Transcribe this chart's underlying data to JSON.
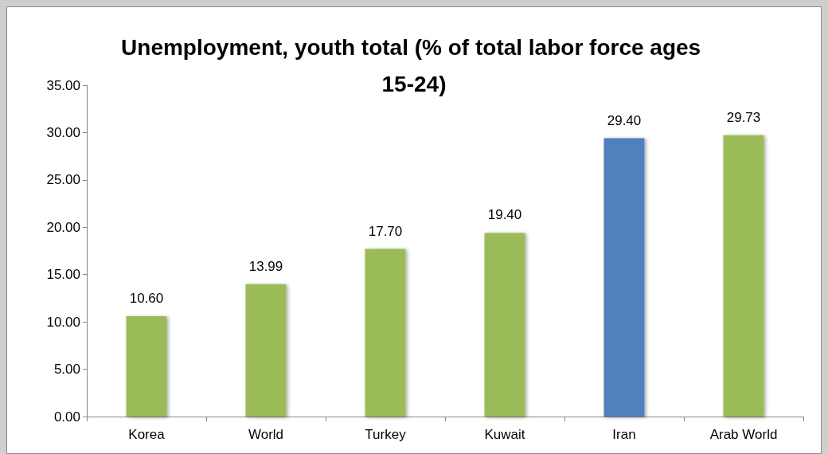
{
  "chart_data": {
    "type": "bar",
    "title": "Unemployment, youth total (% of total labor force ages 15-24)",
    "categories": [
      "Korea",
      "World",
      "Turkey",
      "Kuwait",
      "Iran",
      "Arab World"
    ],
    "values": [
      10.6,
      13.99,
      17.7,
      19.4,
      29.4,
      29.73
    ],
    "colors": [
      "#9bbb59",
      "#9bbb59",
      "#9bbb59",
      "#9bbb59",
      "#4f81bd",
      "#9bbb59"
    ],
    "value_labels": [
      "10.60",
      "13.99",
      "17.70",
      "19.40",
      "29.40",
      "29.73"
    ],
    "ylim": [
      0,
      35
    ],
    "yticks": [
      {
        "value": 0,
        "label": "0.00"
      },
      {
        "value": 5,
        "label": "5.00"
      },
      {
        "value": 10,
        "label": "10.00"
      },
      {
        "value": 15,
        "label": "15.00"
      },
      {
        "value": 20,
        "label": "20.00"
      },
      {
        "value": 25,
        "label": "25.00"
      },
      {
        "value": 30,
        "label": "30.00"
      },
      {
        "value": 35,
        "label": "35.00"
      }
    ],
    "grid": false
  }
}
